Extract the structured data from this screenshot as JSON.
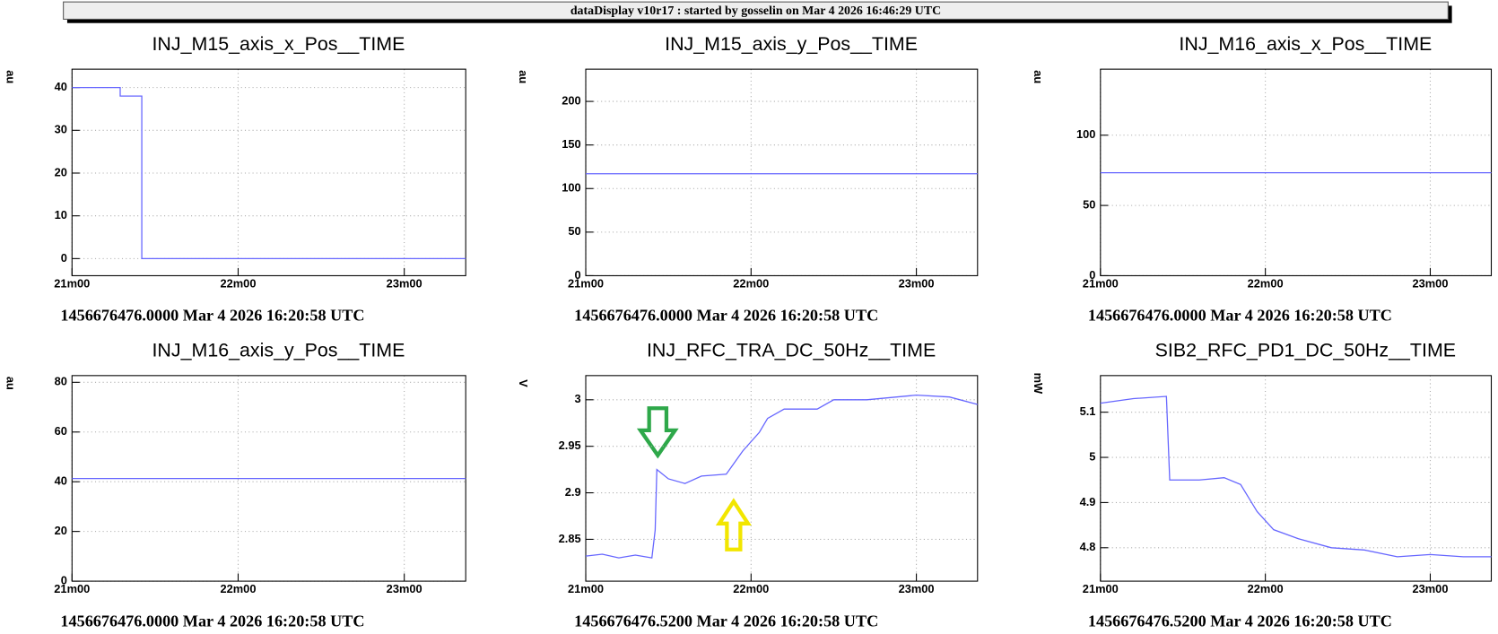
{
  "header": {
    "title": "dataDisplay v10r17 : started by gosselin on Mar  4 2026 16:46:29 UTC"
  },
  "chart_data": [
    {
      "type": "line",
      "title": "INJ_M15_axis_x_Pos__TIME",
      "y_label": "au",
      "footer": "1456676476.0000 Mar 4 2026 16:20:58 UTC",
      "x": [
        21,
        21.29,
        21.29,
        21.42,
        21.42,
        23.37
      ],
      "values": [
        40,
        40,
        38,
        38,
        0,
        0
      ],
      "color": "#6666ff",
      "xlim": [
        21,
        23.37
      ],
      "xticks": [
        {
          "value": 21,
          "label": "21m00"
        },
        {
          "value": 22,
          "label": "22m00"
        },
        {
          "value": 23,
          "label": "23m00"
        }
      ],
      "ylim": [
        -4,
        44.3
      ],
      "yticks": [
        0,
        10,
        20,
        30,
        40
      ],
      "grid": true
    },
    {
      "type": "line",
      "title": "INJ_M15_axis_y_Pos__TIME",
      "y_label": "au",
      "footer": "1456676476.0000 Mar 4 2026 16:20:58 UTC",
      "x": [
        21,
        23.37
      ],
      "values": [
        117,
        117
      ],
      "color": "#6666ff",
      "xlim": [
        21,
        23.37
      ],
      "xticks": [
        {
          "value": 21,
          "label": "21m00"
        },
        {
          "value": 22,
          "label": "22m00"
        },
        {
          "value": 23,
          "label": "23m00"
        }
      ],
      "ylim": [
        0,
        237
      ],
      "yticks": [
        0,
        50,
        100,
        150,
        200
      ],
      "grid": true
    },
    {
      "type": "line",
      "title": "INJ_M16_axis_x_Pos__TIME",
      "y_label": "au",
      "footer": "1456676476.0000 Mar 4 2026 16:20:58 UTC",
      "x": [
        21,
        23.37
      ],
      "values": [
        73.3,
        73.3
      ],
      "color": "#6666ff",
      "xlim": [
        21,
        23.37
      ],
      "xticks": [
        {
          "value": 21,
          "label": "21m00"
        },
        {
          "value": 22,
          "label": "22m00"
        },
        {
          "value": 23,
          "label": "23m00"
        }
      ],
      "ylim": [
        0,
        147
      ],
      "yticks": [
        0,
        50,
        100
      ],
      "grid": true
    },
    {
      "type": "line",
      "title": "INJ_M16_axis_y_Pos__TIME",
      "y_label": "au",
      "footer": "1456676476.0000 Mar 4 2026 16:20:58 UTC",
      "x": [
        21,
        23.37
      ],
      "values": [
        41.3,
        41.3
      ],
      "color": "#6666ff",
      "xlim": [
        21,
        23.37
      ],
      "xticks": [
        {
          "value": 21,
          "label": "21m00"
        },
        {
          "value": 22,
          "label": "22m00"
        },
        {
          "value": 23,
          "label": "23m00"
        }
      ],
      "ylim": [
        0,
        82.7
      ],
      "yticks": [
        0,
        20,
        40,
        60,
        80
      ],
      "grid": true
    },
    {
      "type": "line",
      "title": "INJ_RFC_TRA_DC_50Hz__TIME",
      "y_label": "V",
      "footer": "1456676476.5200 Mar 4 2026 16:20:58 UTC",
      "x": [
        21,
        21.1,
        21.2,
        21.3,
        21.4,
        21.42,
        21.43,
        21.5,
        21.6,
        21.7,
        21.85,
        21.95,
        22.05,
        22.1,
        22.2,
        22.4,
        22.5,
        22.7,
        23.0,
        23.2,
        23.37
      ],
      "values": [
        2.832,
        2.834,
        2.83,
        2.833,
        2.83,
        2.86,
        2.925,
        2.915,
        2.91,
        2.918,
        2.92,
        2.945,
        2.965,
        2.98,
        2.99,
        2.99,
        3.0,
        3.0,
        3.005,
        3.003,
        2.995
      ],
      "color": "#6666ff",
      "xlim": [
        21,
        23.37
      ],
      "xticks": [
        {
          "value": 21,
          "label": "21m00"
        },
        {
          "value": 22,
          "label": "22m00"
        },
        {
          "value": 23,
          "label": "23m00"
        }
      ],
      "ylim": [
        2.805,
        3.026
      ],
      "yticks": [
        2.85,
        2.9,
        2.95,
        3
      ],
      "grid": true
    },
    {
      "type": "line",
      "title": "SIB2_RFC_PD1_DC_50Hz__TIME",
      "y_label": "mW",
      "footer": "1456676476.5200 Mar 4 2026 16:20:58 UTC",
      "x": [
        21,
        21.2,
        21.4,
        21.42,
        21.6,
        21.75,
        21.85,
        21.95,
        22.05,
        22.2,
        22.4,
        22.6,
        22.8,
        23.0,
        23.2,
        23.37
      ],
      "values": [
        5.12,
        5.13,
        5.135,
        4.95,
        4.95,
        4.955,
        4.94,
        4.88,
        4.84,
        4.82,
        4.8,
        4.795,
        4.78,
        4.785,
        4.78,
        4.78
      ],
      "color": "#6666ff",
      "xlim": [
        21,
        23.37
      ],
      "xticks": [
        {
          "value": 21,
          "label": "21m00"
        },
        {
          "value": 22,
          "label": "22m00"
        },
        {
          "value": 23,
          "label": "23m00"
        }
      ],
      "ylim": [
        4.726,
        5.181
      ],
      "yticks": [
        4.8,
        4.9,
        5,
        5.1
      ],
      "grid": true
    }
  ]
}
